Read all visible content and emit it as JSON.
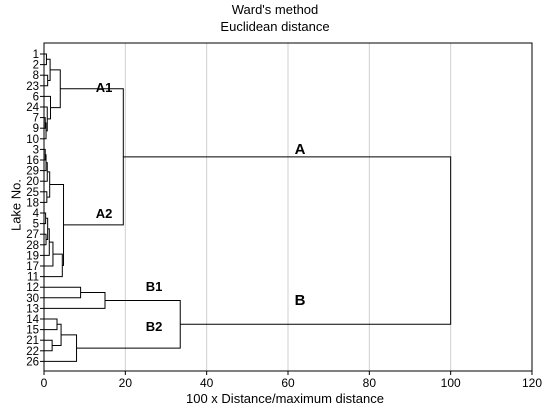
{
  "chart_data": {
    "type": "dendrogram",
    "title": "Ward's method",
    "subtitle": "Euclidean distance",
    "xlabel": "100 x Distance/maximum distance",
    "ylabel": "Lake No.",
    "xlim": [
      0,
      120
    ],
    "x_ticks": [
      0,
      20,
      40,
      60,
      80,
      100,
      120
    ],
    "grid": "vertical",
    "leaves": [
      "1",
      "2",
      "8",
      "23",
      "6",
      "24",
      "7",
      "9",
      "10",
      "3",
      "16",
      "29",
      "20",
      "25",
      "18",
      "4",
      "5",
      "27",
      "28",
      "19",
      "17",
      "11",
      "12",
      "30",
      "13",
      "14",
      "15",
      "21",
      "22",
      "26"
    ],
    "clusters": [
      {
        "name": "A",
        "distance": 100
      },
      {
        "name": "A1",
        "distance": 19.5
      },
      {
        "name": "A2",
        "distance": 19.5
      },
      {
        "name": "B",
        "distance": 33.5
      },
      {
        "name": "B1",
        "distance": 15
      },
      {
        "name": "B2",
        "distance": 8
      }
    ],
    "linkage": [
      {
        "members": [
          0,
          1
        ],
        "height": 0.6
      },
      {
        "members": [
          2,
          3
        ],
        "height": 0.9
      },
      {
        "members": [
          100,
          101
        ],
        "height": 1.5
      },
      {
        "members": [
          6,
          7
        ],
        "height": 0.3
      },
      {
        "members": [
          103,
          8
        ],
        "height": 0.5
      },
      {
        "members": [
          5,
          104
        ],
        "height": 0.8
      },
      {
        "members": [
          4,
          105
        ],
        "height": 1.6
      },
      {
        "members": [
          102,
          106
        ],
        "height": 4.0
      },
      {
        "members": [
          9,
          10
        ],
        "height": 0.3
      },
      {
        "members": [
          108,
          11
        ],
        "height": 0.5
      },
      {
        "members": [
          109,
          12
        ],
        "height": 0.8
      },
      {
        "members": [
          13,
          14
        ],
        "height": 0.7
      },
      {
        "members": [
          110,
          111
        ],
        "height": 1.4
      },
      {
        "members": [
          15,
          16
        ],
        "height": 0.4
      },
      {
        "members": [
          17,
          18
        ],
        "height": 0.5
      },
      {
        "members": [
          113,
          114
        ],
        "height": 0.9
      },
      {
        "members": [
          115,
          19
        ],
        "height": 1.3
      },
      {
        "members": [
          116,
          20
        ],
        "height": 2.2
      },
      {
        "members": [
          117,
          21
        ],
        "height": 4.5
      },
      {
        "members": [
          112,
          118
        ],
        "height": 4.8
      },
      {
        "members": [
          107,
          119
        ],
        "height": 19.5
      },
      {
        "members": [
          22,
          23
        ],
        "height": 9.0
      },
      {
        "members": [
          121,
          24
        ],
        "height": 15.0
      },
      {
        "members": [
          25,
          26
        ],
        "height": 3.2
      },
      {
        "members": [
          27,
          28
        ],
        "height": 2.0
      },
      {
        "members": [
          123,
          124
        ],
        "height": 4.2
      },
      {
        "members": [
          125,
          29
        ],
        "height": 8.0
      },
      {
        "members": [
          122,
          126
        ],
        "height": 33.5
      },
      {
        "members": [
          120,
          127
        ],
        "height": 100.0
      }
    ]
  }
}
